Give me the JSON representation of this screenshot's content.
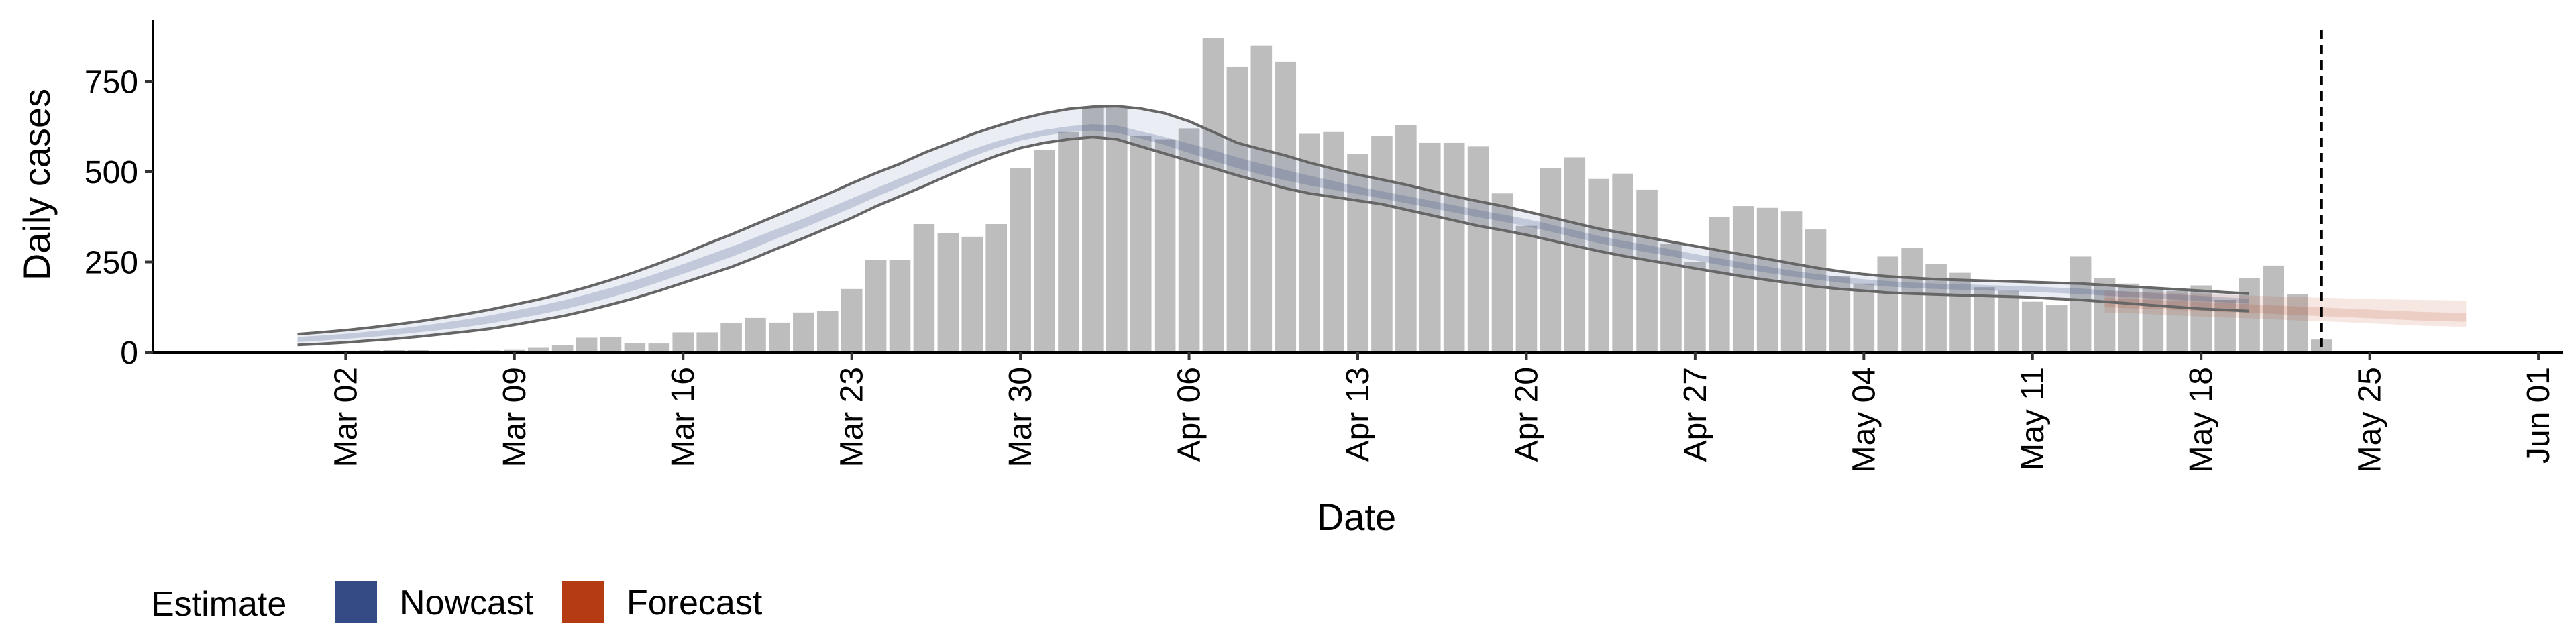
{
  "chart_data": {
    "type": "bar",
    "xlabel": "Date",
    "ylabel": "Daily cases",
    "ylim": [
      0,
      920
    ],
    "y_ticks": [
      0,
      250,
      500,
      750
    ],
    "x_ticks": [
      {
        "date": "2020-03-02",
        "label": "Mar 02"
      },
      {
        "date": "2020-03-09",
        "label": "Mar 09"
      },
      {
        "date": "2020-03-16",
        "label": "Mar 16"
      },
      {
        "date": "2020-03-23",
        "label": "Mar 23"
      },
      {
        "date": "2020-03-30",
        "label": "Mar 30"
      },
      {
        "date": "2020-04-06",
        "label": "Apr 06"
      },
      {
        "date": "2020-04-13",
        "label": "Apr 13"
      },
      {
        "date": "2020-04-20",
        "label": "Apr 20"
      },
      {
        "date": "2020-04-27",
        "label": "Apr 27"
      },
      {
        "date": "2020-05-04",
        "label": "May 04"
      },
      {
        "date": "2020-05-11",
        "label": "May 11"
      },
      {
        "date": "2020-05-18",
        "label": "May 18"
      },
      {
        "date": "2020-05-25",
        "label": "May 25"
      },
      {
        "date": "2020-06-01",
        "label": "Jun 01"
      }
    ],
    "xlim": [
      "2020-02-23",
      "2020-06-02"
    ],
    "bars": {
      "start_date": "2020-02-29",
      "color": "#bdbdbd",
      "values": [
        0,
        0,
        4,
        5,
        6,
        6,
        4,
        4,
        5,
        8,
        12,
        20,
        40,
        42,
        25,
        24,
        55,
        55,
        80,
        95,
        82,
        110,
        115,
        175,
        255,
        255,
        355,
        330,
        320,
        355,
        510,
        560,
        610,
        680,
        680,
        600,
        590,
        620,
        870,
        790,
        850,
        805,
        605,
        610,
        550,
        600,
        630,
        580,
        580,
        570,
        440,
        350,
        510,
        540,
        480,
        495,
        450,
        300,
        250,
        375,
        405,
        400,
        390,
        340,
        210,
        190,
        265,
        290,
        245,
        220,
        180,
        170,
        140,
        130,
        265,
        205,
        190,
        180,
        170,
        185,
        145,
        205,
        240,
        160,
        35
      ]
    },
    "vline_date": "2020-05-23",
    "series": [
      {
        "name": "Nowcast",
        "color": "#344b85",
        "start_date": "2020-02-29",
        "lower90": [
          20,
          23,
          27,
          32,
          37,
          43,
          50,
          57,
          65,
          76,
          88,
          100,
          115,
          132,
          150,
          170,
          192,
          214,
          236,
          262,
          290,
          316,
          344,
          372,
          404,
          432,
          460,
          490,
          518,
          544,
          566,
          580,
          590,
          596,
          590,
          570,
          550,
          530,
          510,
          490,
          472,
          454,
          440,
          430,
          420,
          410,
          395,
          380,
          365,
          350,
          338,
          325,
          310,
          295,
          280,
          267,
          255,
          244,
          232,
          221,
          210,
          200,
          191,
          182,
          175,
          170,
          165,
          162,
          160,
          158,
          156,
          154,
          152,
          148,
          145,
          140,
          135,
          130,
          125,
          120,
          117,
          114
        ],
        "upper90": [
          50,
          55,
          61,
          68,
          76,
          85,
          95,
          106,
          118,
          132,
          146,
          162,
          180,
          200,
          222,
          246,
          272,
          300,
          326,
          354,
          382,
          410,
          438,
          468,
          496,
          522,
          552,
          578,
          604,
          626,
          646,
          662,
          674,
          680,
          682,
          675,
          662,
          640,
          610,
          580,
          562,
          545,
          525,
          508,
          492,
          478,
          464,
          448,
          432,
          418,
          405,
          390,
          374,
          358,
          342,
          330,
          318,
          306,
          294,
          282,
          270,
          258,
          246,
          234,
          224,
          216,
          210,
          206,
          202,
          200,
          198,
          196,
          194,
          192,
          190,
          186,
          182,
          178,
          174,
          170,
          166,
          162
        ],
        "lower50": [
          28,
          32,
          37,
          42,
          48,
          55,
          62,
          70,
          80,
          92,
          104,
          118,
          134,
          152,
          172,
          194,
          217,
          240,
          264,
          290,
          318,
          344,
          372,
          400,
          430,
          458,
          486,
          514,
          542,
          566,
          586,
          600,
          610,
          614,
          608,
          592,
          574,
          552,
          530,
          510,
          492,
          476,
          462,
          450,
          438,
          426,
          413,
          400,
          387,
          374,
          362,
          349,
          334,
          318,
          302,
          289,
          277,
          266,
          254,
          242,
          231,
          220,
          210,
          201,
          193,
          187,
          182,
          178,
          175,
          173,
          171,
          169,
          167,
          164,
          161,
          157,
          153,
          149,
          145,
          141,
          138,
          135
        ],
        "upper50": [
          42,
          46,
          51,
          57,
          64,
          72,
          81,
          91,
          102,
          115,
          128,
          143,
          160,
          178,
          198,
          220,
          244,
          268,
          292,
          318,
          344,
          370,
          398,
          426,
          454,
          482,
          508,
          536,
          562,
          584,
          602,
          616,
          626,
          632,
          628,
          612,
          596,
          578,
          560,
          540,
          522,
          505,
          489,
          474,
          459,
          446,
          433,
          420,
          407,
          394,
          382,
          369,
          354,
          338,
          322,
          309,
          297,
          285,
          272,
          260,
          248,
          237,
          226,
          217,
          209,
          202,
          197,
          193,
          190,
          188,
          186,
          184,
          182,
          179,
          176,
          172,
          168,
          164,
          160,
          156,
          152,
          148
        ]
      },
      {
        "name": "Forecast",
        "color": "#b53c12",
        "start_date": "2020-05-14",
        "lower90": [
          110,
          108,
          105,
          102,
          99,
          96,
          94,
          91,
          88,
          86,
          83,
          80,
          77,
          74,
          72,
          70
        ],
        "upper90": [
          170,
          168,
          166,
          164,
          162,
          159,
          157,
          155,
          153,
          151,
          149,
          147,
          146,
          145,
          144,
          143
        ],
        "lower50": [
          125,
          122,
          120,
          117,
          114,
          111,
          109,
          106,
          103,
          100,
          97,
          94,
          91,
          88,
          86,
          84
        ],
        "upper50": [
          150,
          148,
          145,
          142,
          139,
          136,
          133,
          130,
          127,
          124,
          121,
          118,
          115,
          112,
          110,
          108
        ]
      }
    ],
    "legend": {
      "title": "Estimate",
      "position": "bottom-left",
      "items": [
        {
          "label": "Nowcast",
          "color": "#344b85"
        },
        {
          "label": "Forecast",
          "color": "#b53c12"
        }
      ]
    },
    "grid": false
  }
}
